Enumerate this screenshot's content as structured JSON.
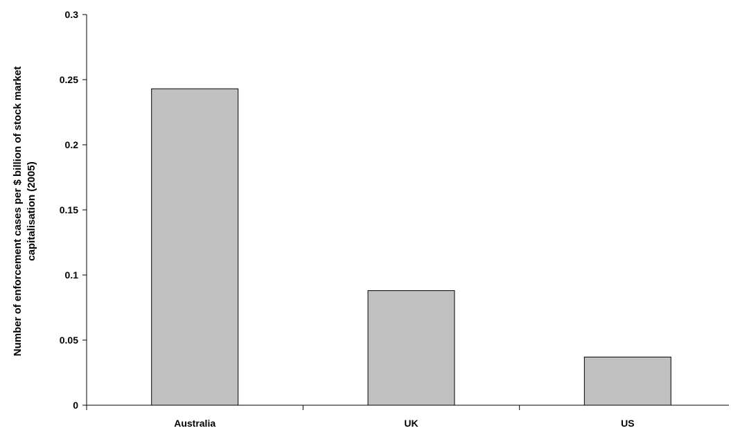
{
  "chart_data": {
    "type": "bar",
    "title": "",
    "xlabel": "",
    "ylabel_lines": [
      "Number of enforcement cases per $ billion of stock market",
      "capitalisation (2005)"
    ],
    "categories": [
      "Australia",
      "UK",
      "US"
    ],
    "values": [
      0.243,
      0.088,
      0.037
    ],
    "ylim": [
      0,
      0.3
    ],
    "yticks": [
      0,
      0.05,
      0.1,
      0.15,
      0.2,
      0.25,
      0.3
    ],
    "ytick_labels": [
      "0",
      "0.05",
      "0.1",
      "0.15",
      "0.2",
      "0.25",
      "0.3"
    ],
    "grid": false,
    "legend": "none",
    "bar_color": "#c0c0c0",
    "bar_edge_color": "#000000"
  }
}
